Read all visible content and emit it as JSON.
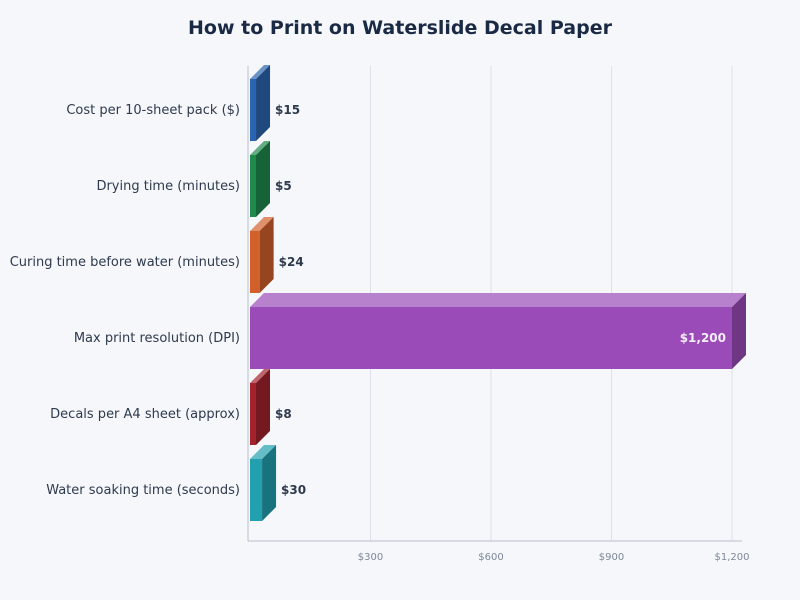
{
  "chart_data": {
    "type": "bar",
    "orientation": "horizontal",
    "style": "3d",
    "title": "How to Print on Waterslide Decal Paper",
    "categories": [
      "Cost per 10-sheet pack ($)",
      "Drying time (minutes)",
      "Curing time before water (minutes)",
      "Max print resolution (DPI)",
      "Decals per A4 sheet (approx)",
      "Water soaking time (seconds)"
    ],
    "values": [
      15,
      5,
      24,
      1200,
      8,
      30
    ],
    "value_labels": [
      "$15",
      "$5",
      "$24",
      "$1,200",
      "$8",
      "$30"
    ],
    "colors": [
      "#2b64b0",
      "#1f8a4c",
      "#d2602a",
      "#9a4bb8",
      "#a3232c",
      "#23a0b0"
    ],
    "xlim": [
      0,
      1200
    ],
    "xticks": [
      300,
      600,
      900,
      1200
    ],
    "xtick_labels": [
      "$300",
      "$600",
      "$900",
      "$1,200"
    ],
    "grid": true
  }
}
